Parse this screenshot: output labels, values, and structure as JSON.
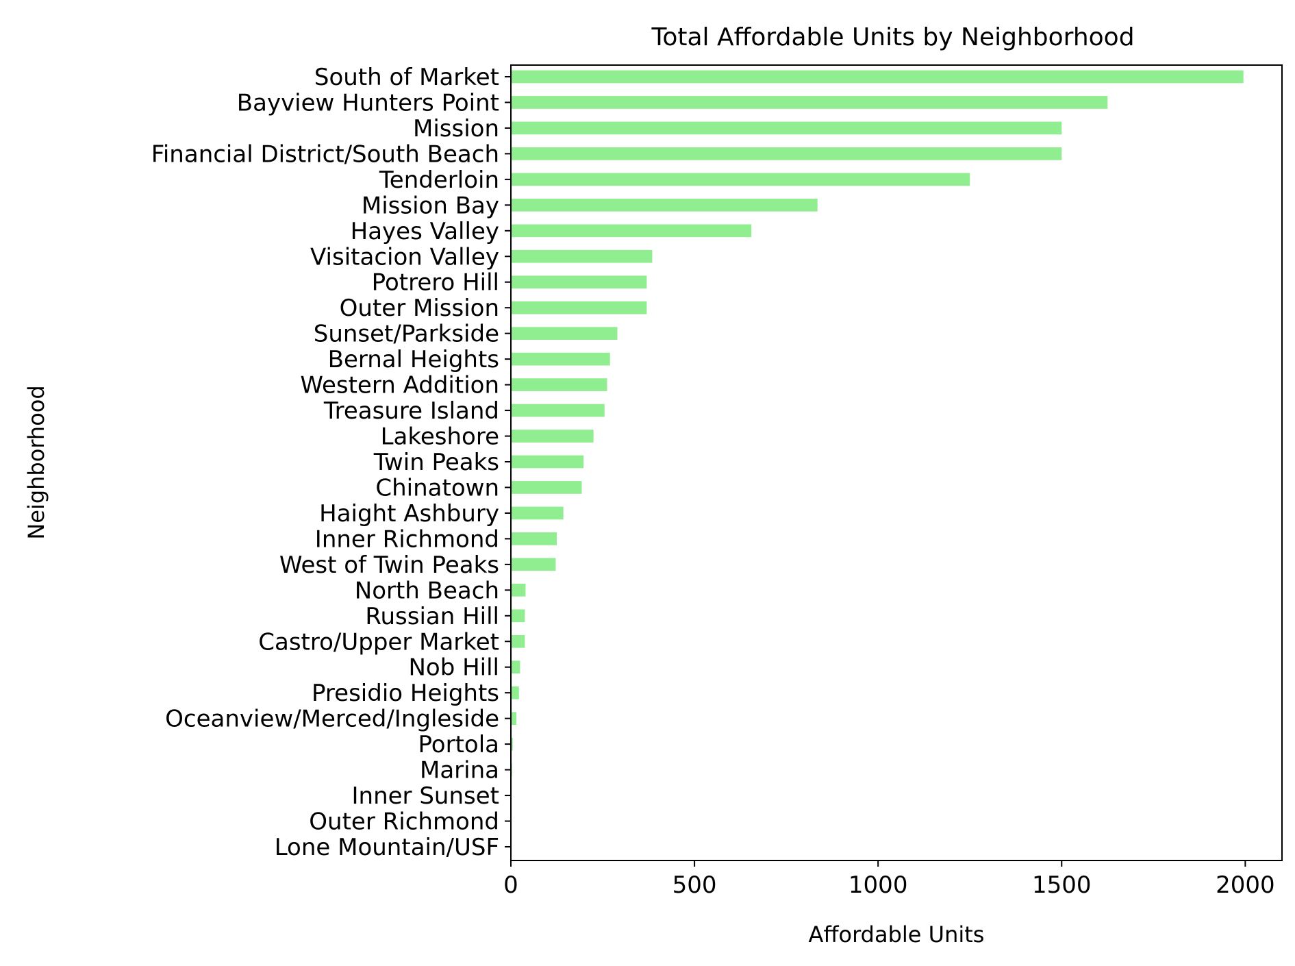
{
  "chart_data": {
    "type": "bar",
    "orientation": "horizontal",
    "title": "Total Affordable Units by Neighborhood",
    "xlabel": "Affordable Units",
    "ylabel": "Neighborhood",
    "xlim": [
      0,
      2100
    ],
    "xticks": [
      0,
      500,
      1000,
      1500,
      2000
    ],
    "grid": false,
    "legend": "none",
    "bar_color": "#90ee90",
    "categories": [
      "South of Market",
      "Bayview Hunters Point",
      "Mission",
      "Financial District/South Beach",
      "Tenderloin",
      "Mission Bay",
      "Hayes Valley",
      "Visitacion Valley",
      "Potrero Hill",
      "Outer Mission",
      "Sunset/Parkside",
      "Bernal Heights",
      "Western Addition",
      "Treasure Island",
      "Lakeshore",
      "Twin Peaks",
      "Chinatown",
      "Haight Ashbury",
      "Inner Richmond",
      "West of Twin Peaks",
      "North Beach",
      "Russian Hill",
      "Castro/Upper Market",
      "Nob Hill",
      "Presidio Heights",
      "Oceanview/Merced/Ingleside",
      "Portola",
      "Marina",
      "Inner Sunset",
      "Outer Richmond",
      "Lone Mountain/USF"
    ],
    "values": [
      1995,
      1625,
      1500,
      1500,
      1250,
      835,
      655,
      385,
      370,
      370,
      290,
      270,
      262,
      255,
      225,
      198,
      193,
      143,
      125,
      122,
      40,
      38,
      38,
      25,
      22,
      15,
      5,
      3,
      2,
      1,
      0
    ]
  }
}
